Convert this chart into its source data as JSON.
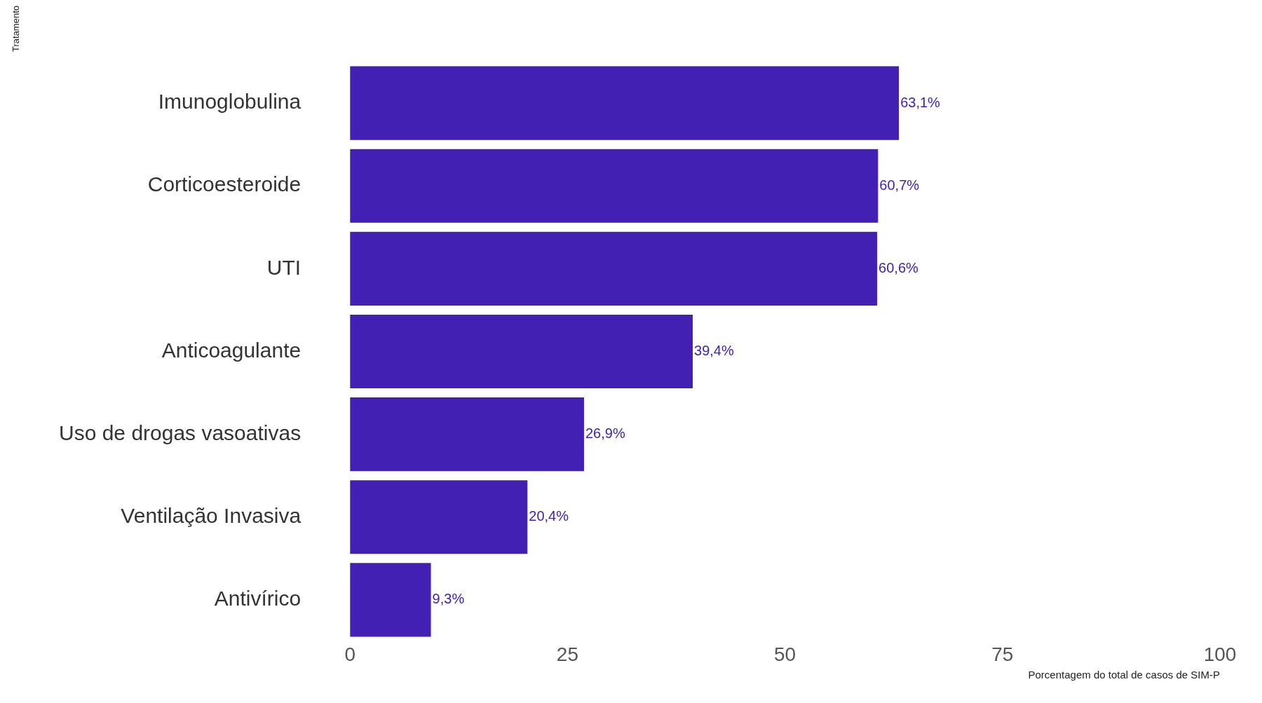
{
  "chart_data": {
    "type": "bar",
    "orientation": "horizontal",
    "categories": [
      "Imunoglobulina",
      "Corticoesteroide",
      "UTI",
      "Anticoagulante",
      "Uso de drogas vasoativas",
      "Ventilação Invasiva",
      "Antivírico"
    ],
    "values": [
      63.1,
      60.7,
      60.6,
      39.4,
      26.9,
      20.4,
      9.3
    ],
    "value_labels": [
      "63,1%",
      "60,7%",
      "60,6%",
      "39,4%",
      "26,9%",
      "20,4%",
      "9,3%"
    ],
    "color": "#4220b4",
    "xlabel": "Porcentagem do total de casos de SIM-P",
    "annotations": [
      "Tratamento"
    ],
    "xlim": [
      0,
      100
    ],
    "xticks": [
      0,
      25,
      50,
      75,
      100
    ],
    "grid": false,
    "legend": false
  }
}
